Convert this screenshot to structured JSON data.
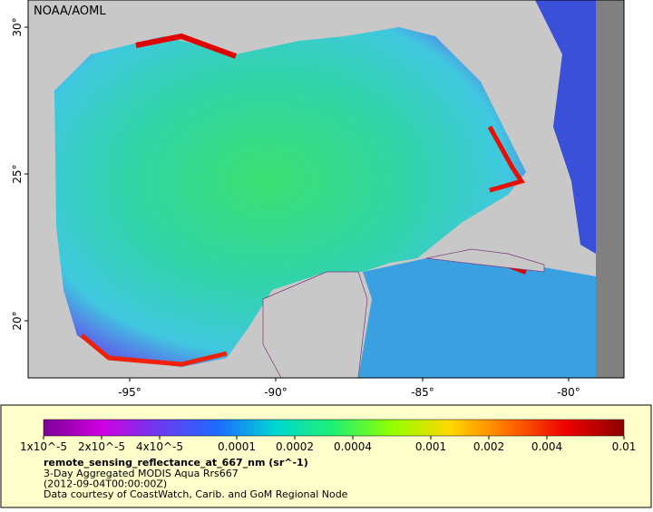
{
  "map": {
    "credit": "NOAA/AOML",
    "lat_labels": [
      "30°",
      "25°",
      "20°"
    ],
    "lon_labels": [
      "-95°",
      "-90°",
      "-85°",
      "-80°"
    ]
  },
  "legend": {
    "ticks": [
      "1x10^-5",
      "2x10^-5",
      "4x10^-5",
      "0.0001",
      "0.0002",
      "0.0004",
      "0.001",
      "0.002",
      "0.004",
      "0.01"
    ],
    "variable": "remote_sensing_reflectance_at_667_nm (sr^-1)",
    "lines": [
      "3-Day Aggregated MODIS Aqua Rrs667",
      "(2012-09-04T00:00:00Z)",
      "Data courtesy of CoastWatch, Carib. and GoM Regional Node"
    ]
  }
}
